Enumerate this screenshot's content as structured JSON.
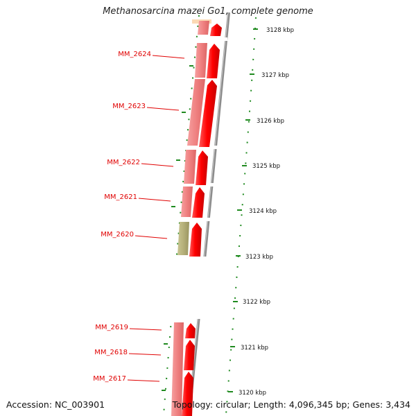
{
  "title": "Methanosarcina mazei Go1, complete genome",
  "accession_text": "Accession: NC_003901",
  "topology_text": "Topology: circular; Length: 4,096,345 bp; Genes: 3,434",
  "colors": {
    "label": "#e00000",
    "gene_forward": "#ff0000",
    "gene_feature": "#f08080",
    "gene_feature_alt": "#b5b07a",
    "backbone": "#8c8c8c",
    "tick": "#1f8a1f"
  },
  "genes": [
    {
      "name": "MM_2624",
      "feature_color": "#f08080"
    },
    {
      "name": "MM_2623",
      "feature_color": "#f08080"
    },
    {
      "name": "MM_2622",
      "feature_color": "#f08080"
    },
    {
      "name": "MM_2621",
      "feature_color": "#f08080"
    },
    {
      "name": "MM_2620",
      "feature_color": "#b5b07a"
    },
    {
      "name": "MM_2619",
      "feature_color": "#f08080"
    },
    {
      "name": "MM_2618",
      "feature_color": "#f08080"
    },
    {
      "name": "MM_2617",
      "feature_color": "#f08080"
    }
  ],
  "scale_labels": [
    "3128 kbp",
    "3127 kbp",
    "3126 kbp",
    "3125 kbp",
    "3124 kbp",
    "3123 kbp",
    "3122 kbp",
    "3121 kbp",
    "3120 kbp"
  ]
}
